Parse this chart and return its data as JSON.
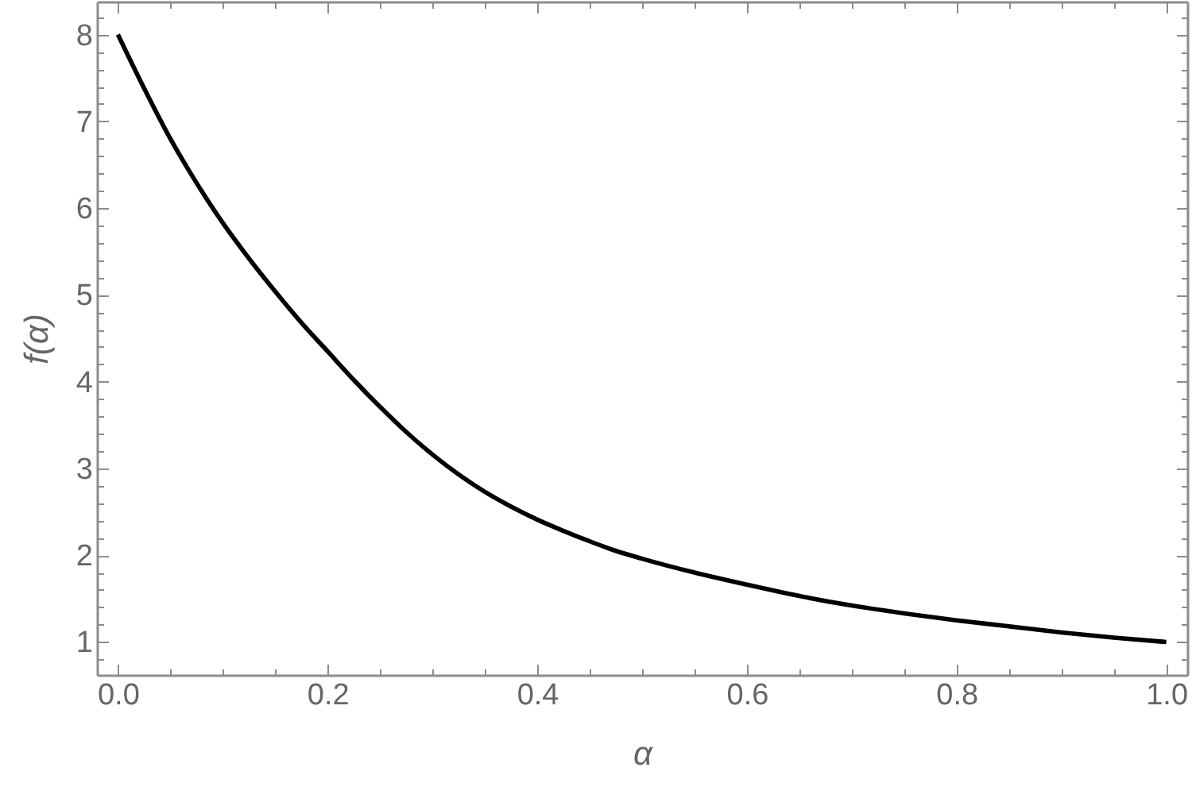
{
  "chart_data": {
    "type": "line",
    "xlabel": "α",
    "ylabel": "f(α)",
    "x": [
      0,
      0.025,
      0.05,
      0.075,
      0.1,
      0.125,
      0.15,
      0.175,
      0.2,
      0.225,
      0.25,
      0.275,
      0.3,
      0.325,
      0.35,
      0.375,
      0.4,
      0.425,
      0.45,
      0.475,
      0.5,
      0.55,
      0.6,
      0.65,
      0.7,
      0.75,
      0.8,
      0.85,
      0.9,
      0.95,
      1
    ],
    "series": [
      {
        "color": "#000000",
        "values": [
          8,
          7.38,
          6.8,
          6.29,
          5.83,
          5.42,
          5.04,
          4.68,
          4.35,
          4.02,
          3.71,
          3.42,
          3.16,
          2.93,
          2.73,
          2.56,
          2.41,
          2.28,
          2.16,
          2.05,
          1.96,
          1.8,
          1.66,
          1.53,
          1.42,
          1.33,
          1.25,
          1.18,
          1.11,
          1.05,
          1
        ]
      }
    ],
    "xlim": [
      -0.02,
      1.02
    ],
    "ylim": [
      0.62,
      8.38
    ],
    "xticks": [
      {
        "value": 0,
        "label": "0.0"
      },
      {
        "value": 0.05,
        "label": null
      },
      {
        "value": 0.1,
        "label": null
      },
      {
        "value": 0.15,
        "label": null
      },
      0.2,
      {
        "value": 0.25,
        "label": null
      },
      {
        "value": 0.3,
        "label": null
      },
      {
        "value": 0.35,
        "label": null
      },
      0.4,
      {
        "value": 0.45,
        "label": null
      },
      {
        "value": 0.5,
        "label": null
      },
      {
        "value": 0.55,
        "label": null
      },
      0.6,
      {
        "value": 0.65,
        "label": null
      },
      {
        "value": 0.7,
        "label": null
      },
      {
        "value": 0.75,
        "label": null
      },
      0.8,
      {
        "value": 0.85,
        "label": null
      },
      {
        "value": 0.9,
        "label": null
      },
      {
        "value": 0.95,
        "label": null
      },
      {
        "value": 1,
        "label": "1.0"
      }
    ],
    "yticks": [
      {
        "value": 0.8,
        "label": null
      },
      1,
      {
        "value": 1.2,
        "label": null
      },
      {
        "value": 1.4,
        "label": null
      },
      {
        "value": 1.6,
        "label": null
      },
      {
        "value": 1.8,
        "label": null
      },
      2,
      {
        "value": 2.2,
        "label": null
      },
      {
        "value": 2.4,
        "label": null
      },
      {
        "value": 2.6,
        "label": null
      },
      {
        "value": 2.8,
        "label": null
      },
      3,
      {
        "value": 3.2,
        "label": null
      },
      {
        "value": 3.4,
        "label": null
      },
      {
        "value": 3.6,
        "label": null
      },
      {
        "value": 3.8,
        "label": null
      },
      4,
      {
        "value": 4.2,
        "label": null
      },
      {
        "value": 4.4,
        "label": null
      },
      {
        "value": 4.6,
        "label": null
      },
      {
        "value": 4.8,
        "label": null
      },
      5,
      {
        "value": 5.2,
        "label": null
      },
      {
        "value": 5.4,
        "label": null
      },
      {
        "value": 5.6,
        "label": null
      },
      {
        "value": 5.8,
        "label": null
      },
      6,
      {
        "value": 6.2,
        "label": null
      },
      {
        "value": 6.4,
        "label": null
      },
      {
        "value": 6.6,
        "label": null
      },
      {
        "value": 6.8,
        "label": null
      },
      7,
      {
        "value": 7.2,
        "label": null
      },
      {
        "value": 7.4,
        "label": null
      },
      {
        "value": 7.6,
        "label": null
      },
      {
        "value": 7.8,
        "label": null
      },
      8,
      {
        "value": 8.2,
        "label": null
      }
    ],
    "grid": false,
    "line_style": "solid"
  }
}
